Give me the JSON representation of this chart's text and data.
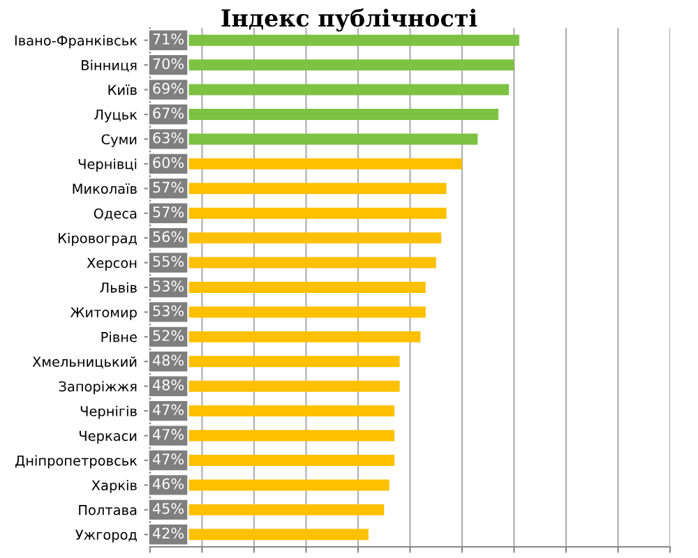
{
  "chart_data": {
    "type": "bar",
    "orientation": "horizontal",
    "title": "Індекс публічності",
    "categories": [
      "Івано-Франківськ",
      "Вінниця",
      "Київ",
      "Луцьк",
      "Суми",
      "Чернівці",
      "Миколаїв",
      "Одеса",
      "Кіровоград",
      "Херсон",
      "Львів",
      "Житомир",
      "Рівне",
      "Хмельницький",
      "Запоріжжя",
      "Чернігів",
      "Черкаси",
      "Дніпропетровськ",
      "Харків",
      "Полтава",
      "Ужгород"
    ],
    "values": [
      71,
      70,
      69,
      67,
      63,
      60,
      57,
      57,
      56,
      55,
      53,
      53,
      52,
      48,
      48,
      47,
      47,
      47,
      46,
      45,
      42
    ],
    "value_labels": [
      "71%",
      "70%",
      "69%",
      "67%",
      "63%",
      "60%",
      "57%",
      "57%",
      "56%",
      "55%",
      "53%",
      "53%",
      "52%",
      "48%",
      "48%",
      "47%",
      "47%",
      "47%",
      "46%",
      "45%",
      "42%"
    ],
    "colors": [
      "#7dc242",
      "#7dc242",
      "#7dc242",
      "#7dc242",
      "#7dc242",
      "#ffc000",
      "#ffc000",
      "#ffc000",
      "#ffc000",
      "#ffc000",
      "#ffc000",
      "#ffc000",
      "#ffc000",
      "#ffc000",
      "#ffc000",
      "#ffc000",
      "#ffc000",
      "#ffc000",
      "#ffc000",
      "#ffc000",
      "#ffc000"
    ],
    "xlim": [
      0,
      100
    ],
    "xticks": [
      {
        "value": 0,
        "label": null
      },
      {
        "value": 10,
        "label": null
      },
      {
        "value": 20,
        "label": null
      },
      {
        "value": 30,
        "label": null
      },
      {
        "value": 40,
        "label": null
      },
      {
        "value": 50,
        "label": null
      },
      {
        "value": 60,
        "label": null
      },
      {
        "value": 70,
        "label": null
      },
      {
        "value": 80,
        "label": null
      },
      {
        "value": 90,
        "label": null
      },
      {
        "value": 100,
        "label": null
      }
    ],
    "tick_labels": "y",
    "grid": "x",
    "legend": false
  }
}
